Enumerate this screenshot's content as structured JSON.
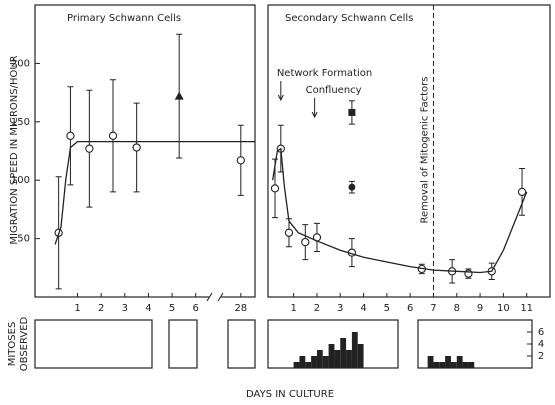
{
  "chart_data": [
    {
      "type": "errorbar",
      "title": "Primary Schwann Cells",
      "y_label": "MIGRATION SPEED IN MICRONS/HOUR",
      "xlim": [
        -0.8,
        28.6
      ],
      "xbreak": [
        6.6,
        27.2
      ],
      "xticks": [
        1,
        2,
        3,
        4,
        5,
        6,
        28
      ],
      "ylim": [
        0,
        250
      ],
      "yticks": [
        50,
        100,
        150,
        200
      ],
      "series": [
        {
          "marker": "circle-open",
          "color": "#222",
          "x": [
            0.2,
            0.7,
            1.5,
            2.5,
            3.5,
            28
          ],
          "values": [
            55,
            138,
            127,
            138,
            128,
            117
          ],
          "errors": [
            48,
            42,
            50,
            48,
            38,
            30
          ]
        },
        {
          "marker": "triangle",
          "color": "#222",
          "x": [
            5.3
          ],
          "values": [
            172
          ],
          "errors": [
            53
          ]
        },
        {
          "marker": "line",
          "color": "#222",
          "x": [
            0.05,
            0.3,
            0.5,
            0.7,
            1,
            28.6
          ],
          "values": [
            45,
            60,
            100,
            128,
            133,
            133
          ]
        }
      ]
    },
    {
      "type": "errorbar",
      "title": "Secondary Schwann Cells",
      "xlim": [
        -0.1,
        12
      ],
      "xticks": [
        1,
        2,
        3,
        4,
        5,
        6,
        7,
        8,
        9,
        10,
        11
      ],
      "ylim": [
        0,
        250
      ],
      "series": [
        {
          "marker": "circle-open",
          "color": "#222",
          "x": [
            0.2,
            0.45,
            0.8,
            1.5,
            2,
            3.5,
            6.5,
            7.8,
            8.5,
            9.5,
            10.8
          ],
          "values": [
            93,
            127,
            55,
            47,
            51,
            38,
            24,
            22,
            20,
            22,
            90
          ],
          "errors": [
            25,
            20,
            12,
            15,
            12,
            12,
            4,
            10,
            4,
            7,
            20
          ]
        },
        {
          "marker": "square",
          "color": "#222",
          "x": [
            3.5
          ],
          "values": [
            158
          ],
          "errors": [
            10
          ]
        },
        {
          "marker": "circle",
          "color": "#222",
          "x": [
            3.5
          ],
          "values": [
            94
          ],
          "errors": [
            5
          ]
        },
        {
          "marker": "line",
          "color": "#222",
          "x": [
            0.1,
            0.3,
            0.45,
            0.6,
            0.8,
            1.2,
            2,
            3,
            4,
            5,
            6,
            7,
            8,
            9,
            9.5,
            10,
            10.5,
            11
          ],
          "values": [
            100,
            125,
            127,
            95,
            65,
            55,
            48,
            40,
            34,
            30,
            26,
            23,
            22,
            21,
            22,
            40,
            65,
            90
          ]
        }
      ],
      "annotations": [
        {
          "text": "Network Formation",
          "x": 0.45,
          "style": "arrow"
        },
        {
          "text": "Confluency",
          "x": 1.9,
          "style": "arrow"
        },
        {
          "text": "Removal of Mitogenic Factors",
          "x": 7,
          "style": "dashed-line"
        }
      ]
    },
    {
      "type": "histogram",
      "x_label": "DAYS IN CULTURE",
      "y_label": [
        "MITOSES",
        "OBSERVED"
      ],
      "xlim": [
        -0.1,
        12
      ],
      "ylim": [
        0,
        8
      ],
      "yticks": [
        2,
        4,
        6
      ],
      "color": "#222",
      "series": [
        {
          "bins": [
            1,
            1.25,
            1.5,
            1.75,
            2,
            2.25,
            2.5,
            2.75,
            3,
            3.25,
            3.5,
            3.75,
            4
          ],
          "values": [
            1,
            2,
            1,
            2,
            3,
            2,
            4,
            3,
            5,
            3,
            6,
            4
          ]
        },
        {
          "bins": [
            6.75,
            7,
            7.25,
            7.5,
            7.75,
            8,
            8.25,
            8.5,
            8.75
          ],
          "values": [
            2,
            1,
            1,
            2,
            1,
            2,
            1,
            1
          ]
        }
      ]
    }
  ]
}
